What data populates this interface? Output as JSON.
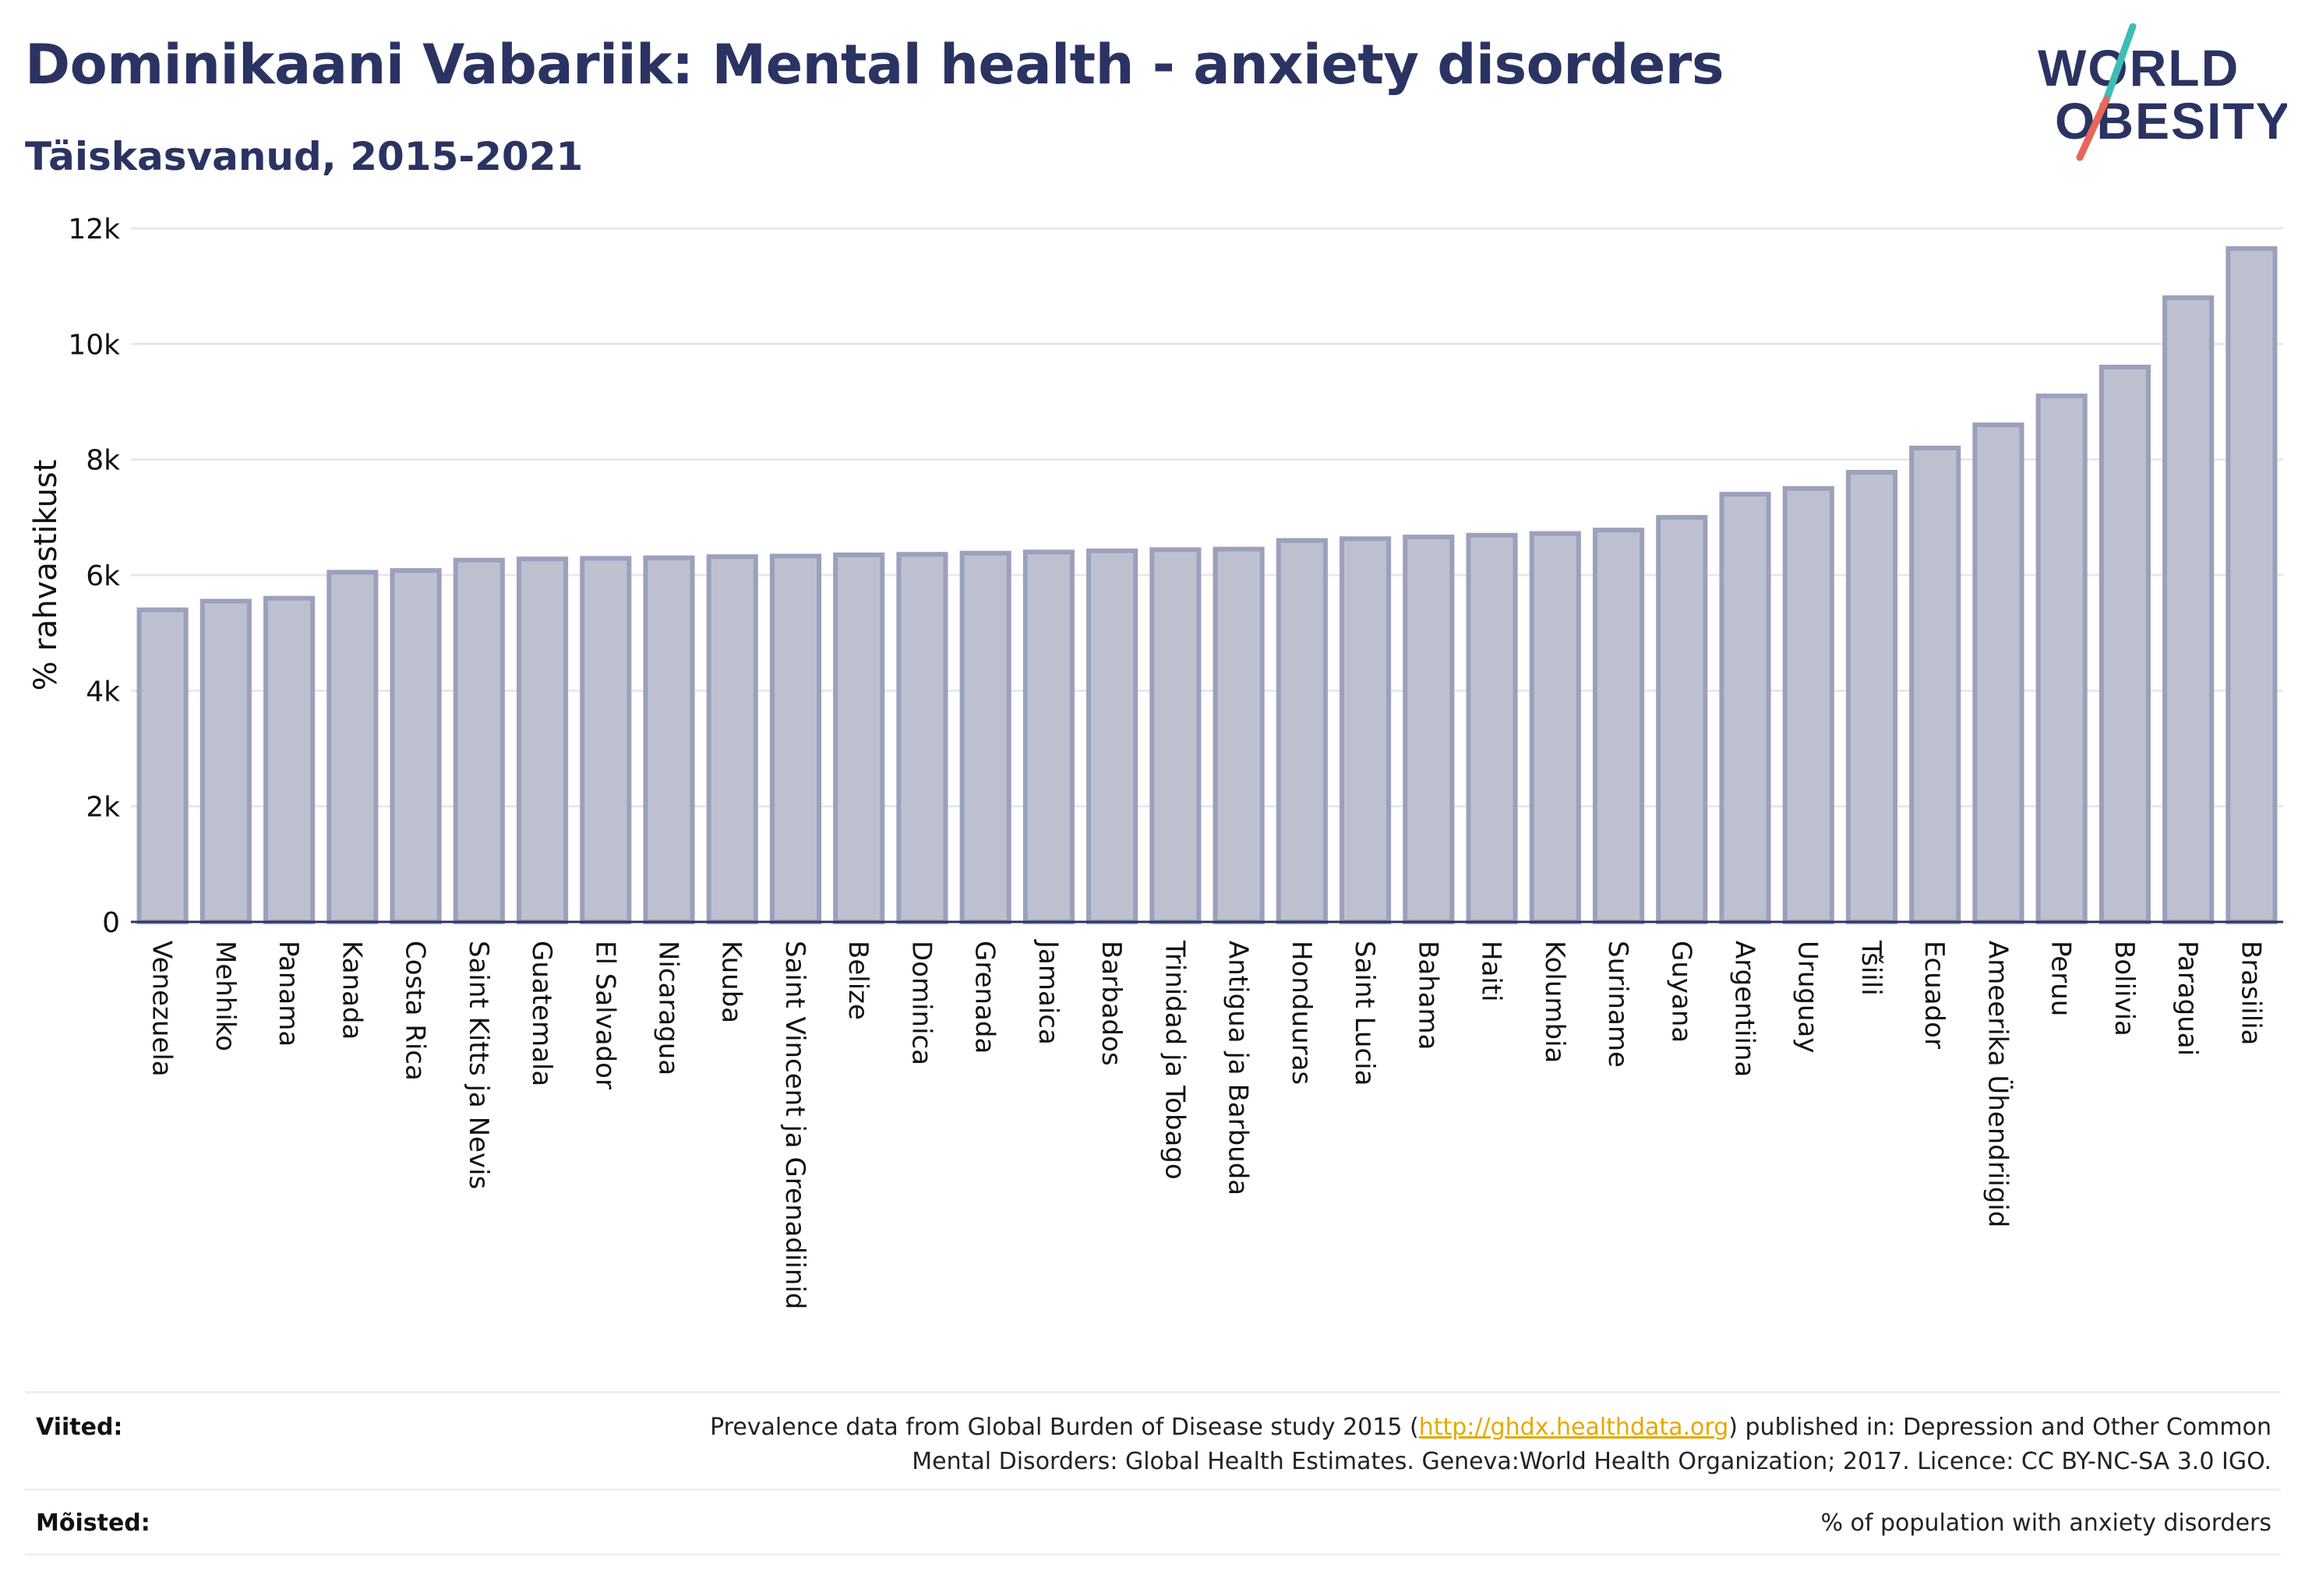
{
  "header": {
    "title": "Dominikaani Vabariik: Mental health - anxiety disorders",
    "subtitle": "Täiskasvanud, 2015-2021"
  },
  "logo": {
    "line1": "WORLD",
    "line2": "OBESITY",
    "colors": {
      "text": "#2a3362",
      "slash_top": "#3dbdb5",
      "slash_bottom": "#e8665a"
    }
  },
  "chart_data": {
    "type": "bar",
    "ylabel": "% rahvastikust",
    "xlabel": "",
    "ylim": [
      0,
      12000
    ],
    "yticks": [
      0,
      2000,
      4000,
      6000,
      8000,
      10000,
      12000
    ],
    "ytick_labels": [
      "0",
      "2k",
      "4k",
      "6k",
      "8k",
      "10k",
      "12k"
    ],
    "grid": true,
    "bar_fill": "#bdc1cf",
    "bar_stroke": "#9ba0bc",
    "categories": [
      "Venezuela",
      "Mehhiko",
      "Panama",
      "Kanada",
      "Costa Rica",
      "Saint Kitts ja Nevis",
      "Guatemala",
      "El Salvador",
      "Nicaragua",
      "Kuuba",
      "Saint Vincent ja Grenadiinid",
      "Belize",
      "Dominica",
      "Grenada",
      "Jamaica",
      "Barbados",
      "Trinidad ja Tobago",
      "Antigua ja Barbuda",
      "Honduuras",
      "Saint Lucia",
      "Bahama",
      "Haiti",
      "Kolumbia",
      "Suriname",
      "Guyana",
      "Argentiina",
      "Uruguay",
      "Tšiili",
      "Ecuador",
      "Ameerika Ühendriigid",
      "Peruu",
      "Boliivia",
      "Paraguai",
      "Brasiilia"
    ],
    "values": [
      5400,
      5550,
      5600,
      6050,
      6080,
      6260,
      6280,
      6290,
      6300,
      6320,
      6330,
      6350,
      6360,
      6380,
      6400,
      6420,
      6440,
      6450,
      6600,
      6630,
      6660,
      6690,
      6720,
      6780,
      7000,
      7400,
      7500,
      7780,
      8200,
      8600,
      9100,
      9600,
      10800,
      11650
    ]
  },
  "footer": {
    "sources_label": "Viited:",
    "sources_text_1": "Prevalence data from Global Burden of Disease study 2015 (",
    "sources_link": "http://ghdx.healthdata.org",
    "sources_text_2": ") published in: Depression and Other Common",
    "sources_text_3": "Mental Disorders: Global Health Estimates. Geneva:World Health Organization; 2017. Licence: CC BY-NC-SA 3.0 IGO.",
    "definitions_label": "Mõisted:",
    "definitions_text": "% of population with anxiety disorders"
  }
}
